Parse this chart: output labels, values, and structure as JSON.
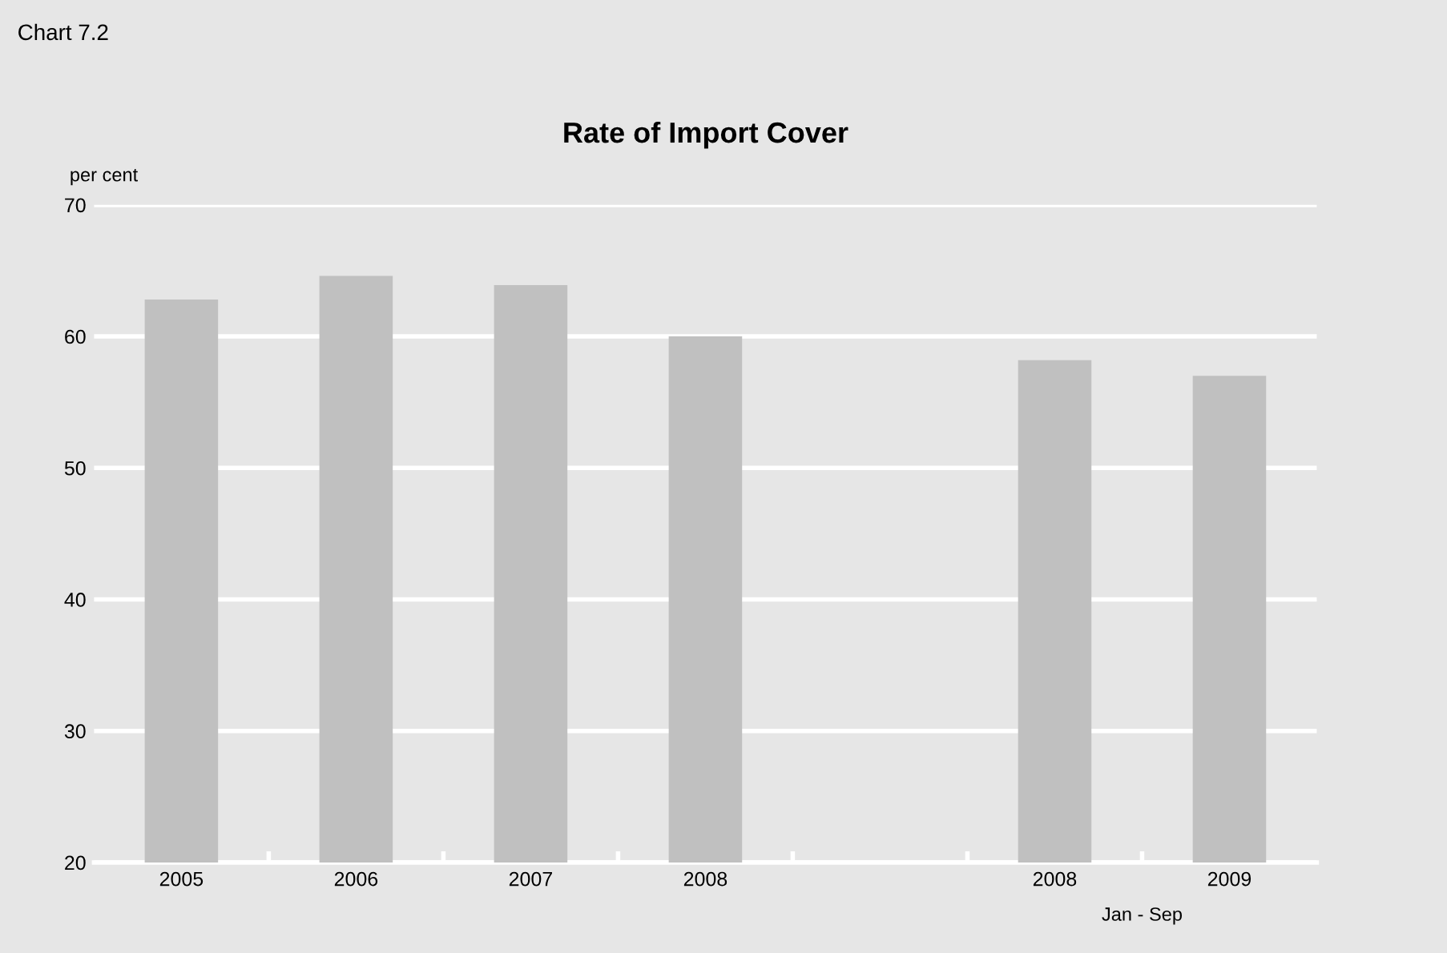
{
  "chart_data": {
    "type": "bar",
    "title": "Rate of Import Cover",
    "ylabel": "per cent",
    "categories": [
      "2005",
      "2006",
      "2007",
      "2008",
      null,
      "2008",
      "2009"
    ],
    "values": [
      62.8,
      64.6,
      63.9,
      60.0,
      null,
      58.2,
      57.0
    ],
    "color": "#c0c0c0",
    "ylim": [
      20,
      70
    ],
    "yticks": [
      20,
      30,
      40,
      50,
      60,
      70
    ],
    "grid": "y",
    "annotations": [
      "Chart 7.2",
      "Jan - Sep"
    ]
  }
}
